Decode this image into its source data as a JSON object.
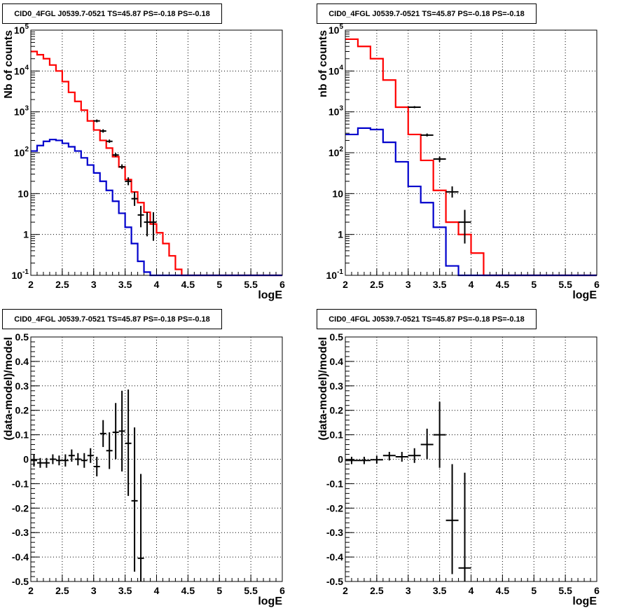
{
  "colors": {
    "data": "#000000",
    "model_total": "#ff0000",
    "model_source": "#0000cc",
    "grid": "#000000"
  },
  "chart_data": [
    {
      "type": "histogram",
      "title": "CID0_4FGL J0539.7-0521 TS=45.87 PS=-0.18 PS=-0.18",
      "xlabel": "logE",
      "ylabel": "Nb of counts",
      "xlim": [
        2,
        6
      ],
      "ylim": [
        0.1,
        100000
      ],
      "yscale": "log",
      "grid": true,
      "x_ticks": [
        "2",
        "2.5",
        "3",
        "3.5",
        "4",
        "4.5",
        "5",
        "5.5",
        "6"
      ],
      "y_ticks": [
        "10^-1",
        "1",
        "10",
        "10^2",
        "10^3",
        "10^4",
        "10^5"
      ],
      "bin_edges": [
        2.0,
        2.1,
        2.2,
        2.3,
        2.4,
        2.5,
        2.6,
        2.7,
        2.8,
        2.9,
        3.0,
        3.1,
        3.2,
        3.3,
        3.4,
        3.5,
        3.6,
        3.7,
        3.8,
        3.9,
        4.0,
        4.1,
        4.2,
        4.3,
        4.4,
        4.5,
        4.6,
        4.7,
        4.8,
        4.9,
        5.0,
        5.1,
        5.2,
        5.3,
        5.4,
        5.5,
        5.6,
        5.7,
        5.8,
        5.9,
        6.0
      ],
      "series": [
        {
          "kind": "step",
          "color_key": "model_total",
          "values": [
            30000,
            25000,
            20000,
            14000,
            10000,
            5500,
            3000,
            1800,
            1100,
            600,
            360,
            200,
            130,
            80,
            45,
            22,
            11,
            6,
            3.5,
            1.8,
            1.1,
            0.6,
            0.3,
            0.14,
            0.1,
            0.1,
            0.1,
            0.1,
            0.1,
            0.1,
            0.1,
            0.1,
            0.1,
            0.1,
            0.1,
            0.1,
            0.1,
            0.1,
            0.1,
            0.1
          ]
        },
        {
          "kind": "step",
          "color_key": "model_source",
          "values": [
            110,
            150,
            190,
            210,
            200,
            170,
            140,
            110,
            75,
            50,
            32,
            20,
            12,
            6.5,
            3.3,
            1.5,
            0.6,
            0.22,
            0.12,
            0.1,
            0.1,
            0.1,
            0.1,
            0.1,
            0.1,
            0.1,
            0.1,
            0.1,
            0.1,
            0.1,
            0.1,
            0.1,
            0.1,
            0.1,
            0.1,
            0.1,
            0.1,
            0.1,
            0.1,
            0.1
          ]
        },
        {
          "kind": "errorbars",
          "color_key": "data",
          "x": [
            3.05,
            3.15,
            3.25,
            3.35,
            3.45,
            3.55,
            3.65,
            3.75,
            3.85,
            3.95
          ],
          "xerr": 0.05,
          "y": [
            600,
            340,
            190,
            88,
            45,
            20,
            7.5,
            3,
            2,
            2
          ],
          "ylow": [
            555,
            310,
            175,
            80,
            40,
            16,
            5,
            1.5,
            0.9,
            0.7
          ],
          "yhigh": [
            650,
            375,
            210,
            98,
            52,
            25,
            11,
            5,
            3.5,
            3.5
          ]
        }
      ]
    },
    {
      "type": "histogram",
      "title": "CID0_4FGL J0539.7-0521 TS=45.87 PS=-0.18 PS=-0.18",
      "xlabel": "logE",
      "ylabel": "nb of counts",
      "xlim": [
        2,
        6
      ],
      "ylim": [
        0.1,
        100000
      ],
      "yscale": "log",
      "grid": true,
      "x_ticks": [
        "2",
        "2.5",
        "3",
        "3.5",
        "4",
        "4.5",
        "5",
        "5.5",
        "6"
      ],
      "y_ticks": [
        "10^-1",
        "1",
        "10",
        "10^2",
        "10^3",
        "10^4",
        "10^5"
      ],
      "bin_edges": [
        2.0,
        2.2,
        2.4,
        2.6,
        2.8,
        3.0,
        3.2,
        3.4,
        3.6,
        3.8,
        4.0,
        4.2,
        4.4,
        4.6,
        4.8,
        5.0,
        5.2,
        5.4,
        5.6,
        5.8,
        6.0
      ],
      "series": [
        {
          "kind": "step",
          "color_key": "model_total",
          "values": [
            60000,
            40000,
            20000,
            6000,
            1300,
            280,
            65,
            12,
            2,
            1,
            0.35,
            0.1,
            0.1,
            0.1,
            0.1,
            0.1,
            0.1,
            0.1,
            0.1,
            0.1
          ]
        },
        {
          "kind": "step",
          "color_key": "model_source",
          "values": [
            280,
            400,
            370,
            180,
            60,
            15,
            6,
            1.5,
            0.17,
            0.1,
            0.1,
            0.1,
            0.1,
            0.1,
            0.1,
            0.1,
            0.1,
            0.1,
            0.1,
            0.1
          ]
        },
        {
          "kind": "errorbars",
          "color_key": "data",
          "x": [
            3.1,
            3.3,
            3.5,
            3.7,
            3.9
          ],
          "xerr": 0.1,
          "y": [
            1300,
            270,
            70,
            11,
            2
          ],
          "ylow": [
            1230,
            250,
            60,
            8,
            0.6
          ],
          "yhigh": [
            1380,
            295,
            80,
            15,
            4
          ]
        }
      ]
    },
    {
      "type": "scatter",
      "title": "CID0_4FGL J0539.7-0521 TS=45.87 PS=-0.18 PS=-0.18",
      "xlabel": "logE",
      "ylabel": "(data-model)/model",
      "xlim": [
        2,
        6
      ],
      "ylim": [
        -0.5,
        0.5
      ],
      "yscale": "linear",
      "grid": true,
      "x_ticks": [
        "2",
        "2.5",
        "3",
        "3.5",
        "4",
        "4.5",
        "5",
        "5.5",
        "6"
      ],
      "y_ticks": [
        "-0.5",
        "-0.4",
        "-0.3",
        "-0.2",
        "-0.1",
        "0",
        "0.1",
        "0.2",
        "0.3",
        "0.4",
        "0.5"
      ],
      "series": [
        {
          "kind": "errorbars",
          "color_key": "data",
          "x": [
            2.05,
            2.15,
            2.25,
            2.35,
            2.45,
            2.55,
            2.65,
            2.75,
            2.85,
            2.95,
            3.05,
            3.15,
            3.25,
            3.35,
            3.45,
            3.55,
            3.65,
            3.75
          ],
          "xerr": 0.05,
          "y": [
            -0.005,
            -0.015,
            -0.015,
            0.0,
            -0.005,
            -0.005,
            0.015,
            0.0,
            -0.005,
            0.015,
            -0.03,
            0.105,
            0.035,
            0.11,
            0.115,
            0.065,
            -0.17,
            -0.405
          ],
          "ylow": [
            -0.03,
            -0.035,
            -0.035,
            -0.02,
            -0.025,
            -0.03,
            -0.01,
            -0.025,
            -0.035,
            -0.015,
            -0.07,
            0.05,
            -0.04,
            0.0,
            -0.05,
            -0.15,
            -0.46,
            -0.5
          ],
          "yhigh": [
            0.02,
            0.005,
            0.005,
            0.02,
            0.015,
            0.02,
            0.04,
            0.025,
            0.025,
            0.045,
            0.01,
            0.16,
            0.11,
            0.23,
            0.28,
            0.285,
            0.13,
            -0.06
          ]
        }
      ]
    },
    {
      "type": "scatter",
      "title": "CID0_4FGL J0539.7-0521 TS=45.87 PS=-0.18 PS=-0.18",
      "xlabel": "logE",
      "ylabel": "(data-model)/model",
      "xlim": [
        2,
        6
      ],
      "ylim": [
        -0.5,
        0.5
      ],
      "yscale": "linear",
      "grid": true,
      "x_ticks": [
        "2",
        "2.5",
        "3",
        "3.5",
        "4",
        "4.5",
        "5",
        "5.5",
        "6"
      ],
      "y_ticks": [
        "-0.5",
        "-0.4",
        "-0.3",
        "-0.2",
        "-0.1",
        "0",
        "0.1",
        "0.2",
        "0.3",
        "0.4",
        "0.5"
      ],
      "series": [
        {
          "kind": "errorbars",
          "color_key": "data",
          "x": [
            2.1,
            2.3,
            2.5,
            2.7,
            2.9,
            3.1,
            3.3,
            3.5,
            3.7,
            3.9
          ],
          "xerr": 0.1,
          "y": [
            -0.005,
            -0.005,
            -0.002,
            0.015,
            0.01,
            0.015,
            0.06,
            0.1,
            -0.25,
            -0.445
          ],
          "ylow": [
            -0.02,
            -0.02,
            -0.018,
            -0.005,
            -0.01,
            -0.015,
            0.0,
            -0.035,
            -0.47,
            -0.5
          ],
          "yhigh": [
            0.01,
            0.01,
            0.014,
            0.03,
            0.03,
            0.045,
            0.125,
            0.235,
            -0.02,
            -0.055
          ]
        }
      ]
    }
  ]
}
